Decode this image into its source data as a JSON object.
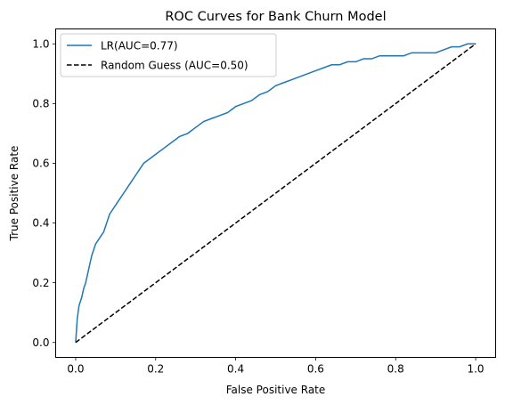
{
  "chart_data": {
    "type": "line",
    "title": "ROC Curves for Bank Churn Model",
    "xlabel": "False Positive Rate",
    "ylabel": "True Positive Rate",
    "xlim": [
      -0.05,
      1.05
    ],
    "ylim": [
      -0.05,
      1.05
    ],
    "xticks": [
      0.0,
      0.2,
      0.4,
      0.6,
      0.8,
      1.0
    ],
    "yticks": [
      0.0,
      0.2,
      0.4,
      0.6,
      0.8,
      1.0
    ],
    "tick_labels_x": [
      "0.0",
      "0.2",
      "0.4",
      "0.6",
      "0.8",
      "1.0"
    ],
    "tick_labels_y": [
      "0.0",
      "0.2",
      "0.4",
      "0.6",
      "0.8",
      "1.0"
    ],
    "grid": false,
    "legend": {
      "position": "upper-left"
    },
    "series": [
      {
        "name": "LR(AUC=0.77)",
        "color": "#1f77b4",
        "style": "solid",
        "x": [
          0.0,
          0.002,
          0.004,
          0.006,
          0.008,
          0.01,
          0.015,
          0.02,
          0.025,
          0.03,
          0.035,
          0.04,
          0.045,
          0.05,
          0.055,
          0.06,
          0.065,
          0.07,
          0.075,
          0.08,
          0.085,
          0.09,
          0.1,
          0.11,
          0.12,
          0.13,
          0.14,
          0.15,
          0.16,
          0.17,
          0.18,
          0.19,
          0.2,
          0.22,
          0.24,
          0.26,
          0.28,
          0.3,
          0.32,
          0.34,
          0.36,
          0.38,
          0.4,
          0.42,
          0.44,
          0.46,
          0.48,
          0.5,
          0.52,
          0.54,
          0.56,
          0.58,
          0.6,
          0.62,
          0.64,
          0.66,
          0.68,
          0.7,
          0.72,
          0.74,
          0.76,
          0.78,
          0.8,
          0.82,
          0.84,
          0.86,
          0.88,
          0.9,
          0.92,
          0.94,
          0.96,
          0.98,
          1.0
        ],
        "y": [
          0.0,
          0.04,
          0.08,
          0.1,
          0.12,
          0.13,
          0.15,
          0.18,
          0.2,
          0.23,
          0.26,
          0.29,
          0.31,
          0.33,
          0.34,
          0.35,
          0.36,
          0.37,
          0.39,
          0.41,
          0.43,
          0.44,
          0.46,
          0.48,
          0.5,
          0.52,
          0.54,
          0.56,
          0.58,
          0.6,
          0.61,
          0.62,
          0.63,
          0.65,
          0.67,
          0.69,
          0.7,
          0.72,
          0.74,
          0.75,
          0.76,
          0.77,
          0.79,
          0.8,
          0.81,
          0.83,
          0.84,
          0.86,
          0.87,
          0.88,
          0.89,
          0.9,
          0.91,
          0.92,
          0.93,
          0.93,
          0.94,
          0.94,
          0.95,
          0.95,
          0.96,
          0.96,
          0.96,
          0.96,
          0.97,
          0.97,
          0.97,
          0.97,
          0.98,
          0.99,
          0.99,
          1.0,
          1.0
        ]
      },
      {
        "name": "Random Guess (AUC=0.50)",
        "color": "#000000",
        "style": "dashed",
        "x": [
          0.0,
          1.0
        ],
        "y": [
          0.0,
          1.0
        ]
      }
    ]
  }
}
